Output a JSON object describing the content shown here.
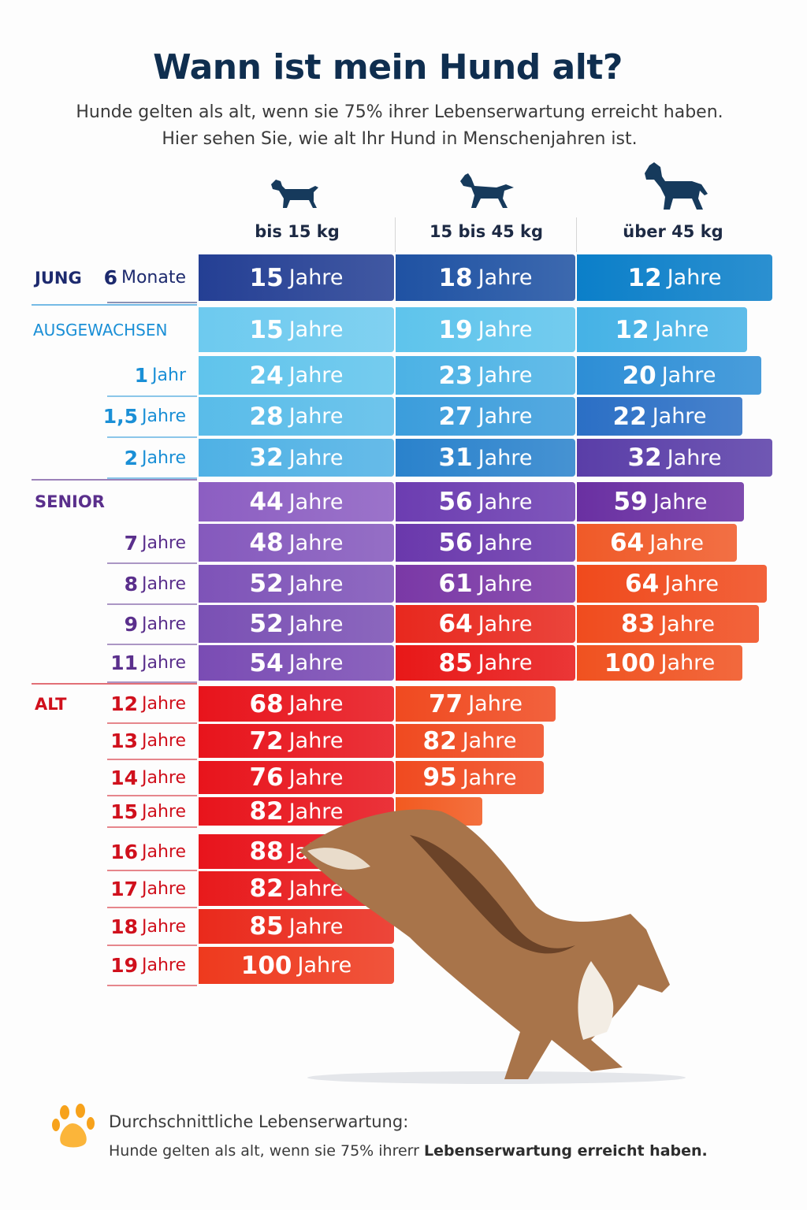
{
  "header": {
    "title": "Wann ist mein Hund alt?",
    "subtitle_line1": "Hunde gelten als alt, wenn sie 75% ihrer Lebenserwartung erreicht haben.",
    "subtitle_line2": "Hier sehen Sie, wie alt Ihr Hund in Menschenjahren ist."
  },
  "chart_data": {
    "type": "table",
    "title": "Wann ist mein Hund alt?",
    "unit": "Jahre",
    "columns": [
      {
        "label": "bis 15 kg",
        "icon": "small-dog-icon"
      },
      {
        "label": "15 bis 45 kg",
        "icon": "medium-dog-icon"
      },
      {
        "label": "über 45 kg",
        "icon": "large-dog-icon"
      }
    ],
    "groups": {
      "JUNG": "#1d2a6e",
      "AUSGEWACHSEN": "#1a8fd6",
      "SENIOR": "#5a2f8c",
      "ALT": "#d0101c"
    },
    "rows": [
      {
        "group": "JUNG",
        "age_num": "6",
        "age_unit": "Monate",
        "values": [
          15,
          18,
          12
        ],
        "colors": [
          "#243f94",
          "#1f52a3",
          "#0b7fc9"
        ]
      },
      {
        "group": "AUSGEWACHSEN",
        "age_num": "",
        "age_unit": "",
        "values": [
          15,
          19,
          12
        ],
        "colors": [
          "#6dcaef",
          "#5ec4ec",
          "#45b2e6"
        ]
      },
      {
        "group": "",
        "age_num": "1",
        "age_unit": "Jahr",
        "values": [
          24,
          23,
          20
        ],
        "colors": [
          "#60c4ec",
          "#4cb2e5",
          "#2d8ed6"
        ]
      },
      {
        "group": "",
        "age_num": "1,5",
        "age_unit": "Jahre",
        "values": [
          28,
          27,
          22
        ],
        "colors": [
          "#59bce9",
          "#3b9ddc",
          "#2b6fc5"
        ]
      },
      {
        "group": "",
        "age_num": "2",
        "age_unit": "Jahre",
        "values": [
          32,
          31,
          32
        ],
        "colors": [
          "#4fb1e5",
          "#2a82cc",
          "#5a3ea8"
        ]
      },
      {
        "group": "SENIOR",
        "age_num": "",
        "age_unit": "",
        "values": [
          44,
          56,
          59
        ],
        "colors": [
          "#8c5ec2",
          "#6c3db1",
          "#6a30a2"
        ]
      },
      {
        "group": "",
        "age_num": "7",
        "age_unit": "Jahre",
        "values": [
          48,
          56,
          64
        ],
        "colors": [
          "#8559bd",
          "#6a38ac",
          "#f05a28"
        ]
      },
      {
        "group": "",
        "age_num": "8",
        "age_unit": "Jahre",
        "values": [
          52,
          61,
          64
        ],
        "colors": [
          "#7e53b8",
          "#7a38a6",
          "#f04a1c"
        ]
      },
      {
        "group": "",
        "age_num": "9",
        "age_unit": "Jahre",
        "values": [
          52,
          64,
          83
        ],
        "colors": [
          "#7a50b4",
          "#e8281e",
          "#f04c1e"
        ]
      },
      {
        "group": "",
        "age_num": "11",
        "age_unit": "Jahre",
        "values": [
          54,
          85,
          100
        ],
        "colors": [
          "#7a4cb4",
          "#e81818",
          "#f05220"
        ]
      },
      {
        "group": "ALT",
        "age_num": "12",
        "age_unit": "Jahre",
        "values": [
          68,
          77,
          null
        ],
        "colors": [
          "#e8141c",
          "#f04a20",
          ""
        ]
      },
      {
        "group": "",
        "age_num": "13",
        "age_unit": "Jahre",
        "values": [
          72,
          82,
          null
        ],
        "colors": [
          "#e8141c",
          "#f04a20",
          ""
        ]
      },
      {
        "group": "",
        "age_num": "14",
        "age_unit": "Jahre",
        "values": [
          76,
          95,
          null
        ],
        "colors": [
          "#e8141c",
          "#f04a20",
          ""
        ]
      },
      {
        "group": "",
        "age_num": "15",
        "age_unit": "Jahre",
        "values": [
          82,
          null,
          null
        ],
        "colors": [
          "#e8141c",
          "#f25a20",
          ""
        ]
      },
      {
        "group": "",
        "age_num": "16",
        "age_unit": "Jahre",
        "values": [
          88,
          null,
          null
        ],
        "colors": [
          "#e8141c",
          "",
          ""
        ]
      },
      {
        "group": "",
        "age_num": "17",
        "age_unit": "Jahre",
        "values": [
          82,
          null,
          null
        ],
        "colors": [
          "#e81a1c",
          "",
          ""
        ]
      },
      {
        "group": "",
        "age_num": "18",
        "age_unit": "Jahre",
        "values": [
          85,
          null,
          null
        ],
        "colors": [
          "#ea2a1c",
          "",
          ""
        ]
      },
      {
        "group": "",
        "age_num": "19",
        "age_unit": "Jahre",
        "values": [
          100,
          null,
          null
        ],
        "colors": [
          "#ee3a1e",
          "",
          ""
        ]
      }
    ]
  },
  "footer": {
    "icon": "paw-icon",
    "line1": "Durchschnittliche Lebenserwartung:",
    "line2_regular": "Hunde gelten als alt, wenn sie 75% ihrerr ",
    "line2_bold": "Lebenserwartung erreicht haben."
  }
}
